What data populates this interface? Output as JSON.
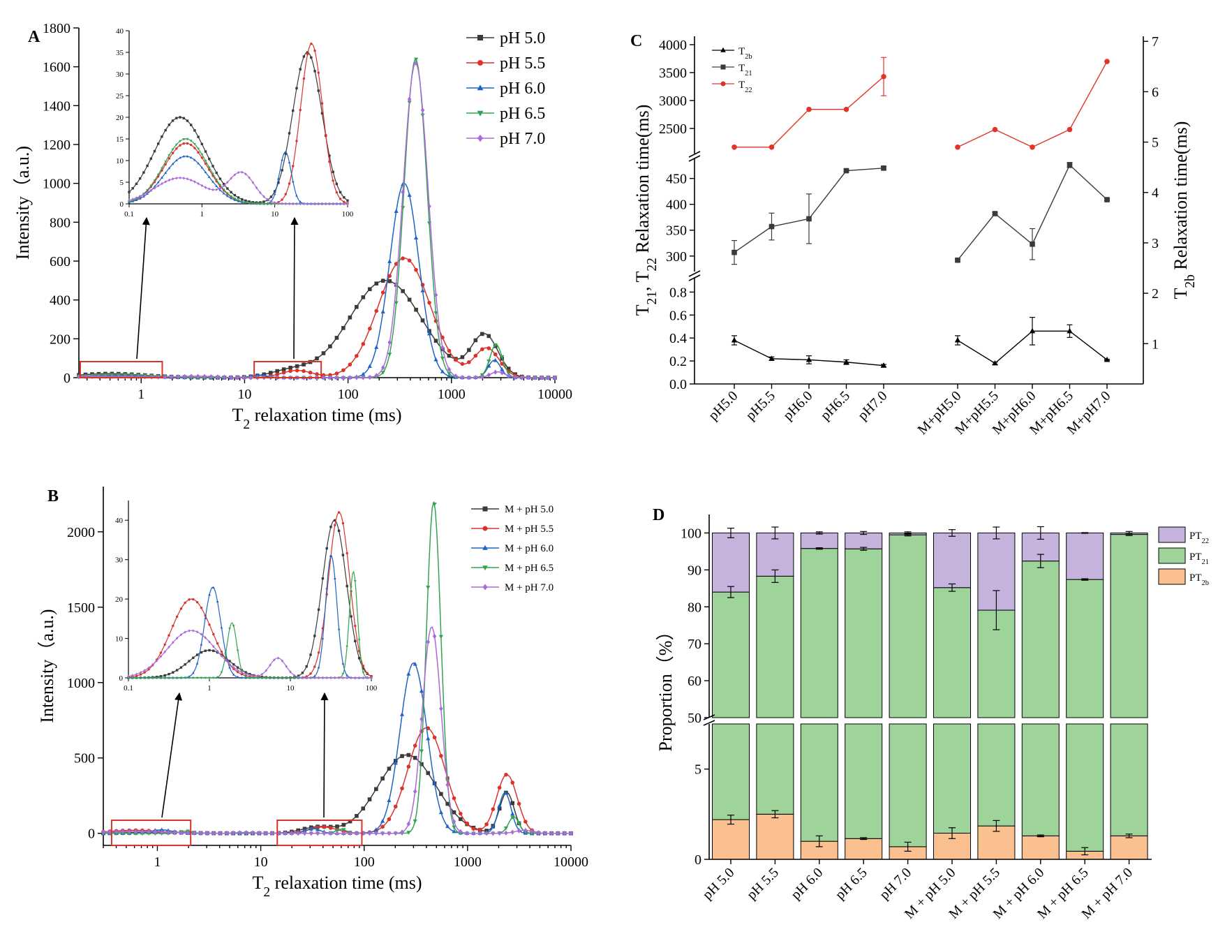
{
  "panels": {
    "A": {
      "letter": "A"
    },
    "B": {
      "letter": "B"
    },
    "C": {
      "letter": "C"
    },
    "D": {
      "letter": "D"
    }
  },
  "colors": {
    "pH 5.0": "#3a3a3a",
    "pH 5.5": "#d9332b",
    "pH 6.0": "#1f63c4",
    "pH 6.5": "#33a351",
    "pH 7.0": "#a86bd9",
    "t2b": "#000000",
    "t21": "#3a3a3a",
    "t22": "#e0342a",
    "pt22": "#c6b3dd",
    "pt21": "#9ed39a",
    "pt2b": "#fbc08f",
    "box": "#d9332b"
  },
  "chart_data": [
    {
      "id": "A",
      "type": "line",
      "title": "",
      "xlabel_main": "T",
      "xlabel_sub": "2",
      "xlabel_rest": " relaxation time (ms)",
      "ylabel": "Intensity（a.u.)",
      "xscale": "log",
      "xlim": [
        0.25,
        10000
      ],
      "ylim": [
        0,
        1800
      ],
      "xticks": [
        "1",
        "10",
        "100",
        "1000",
        "10000"
      ],
      "yticks": [
        "0",
        "200",
        "400",
        "600",
        "800",
        "1000",
        "1200",
        "1400",
        "1600",
        "1800"
      ],
      "legend_position": "top-right",
      "series": [
        {
          "name": "pH 5.0",
          "marker": "square",
          "peaks": [
            [
              0.5,
              20,
              0.35
            ],
            [
              28,
              35,
              0.2
            ],
            [
              230,
              500,
              0.35
            ],
            [
              2100,
              215,
              0.13
            ]
          ]
        },
        {
          "name": "pH 5.5",
          "marker": "circle",
          "peaks": [
            [
              0.6,
              14,
              0.3
            ],
            [
              32,
              37,
              0.15
            ],
            [
              350,
              615,
              0.25
            ],
            [
              2200,
              150,
              0.12
            ]
          ]
        },
        {
          "name": "pH 6.0",
          "marker": "triangle",
          "peaks": [
            [
              0.6,
              11,
              0.3
            ],
            [
              14,
              12,
              0.08
            ],
            [
              350,
              1000,
              0.14
            ],
            [
              2600,
              90,
              0.06
            ]
          ]
        },
        {
          "name": "pH 6.5",
          "marker": "triangle-down",
          "peaks": [
            [
              0.6,
              15,
              0.3
            ],
            [
              450,
              1640,
              0.11
            ],
            [
              2700,
              170,
              0.06
            ]
          ]
        },
        {
          "name": "pH 7.0",
          "marker": "diamond",
          "peaks": [
            [
              0.5,
              6,
              0.35
            ],
            [
              3.5,
              7,
              0.18
            ],
            [
              450,
              1620,
              0.12
            ],
            [
              2800,
              30,
              0.07
            ]
          ]
        }
      ],
      "inset": {
        "xscale": "log",
        "xlim": [
          0.1,
          100
        ],
        "ylim": [
          0,
          40
        ],
        "xticks": [
          "0.1",
          "1",
          "10",
          "100"
        ],
        "yticks": [
          "0",
          "5",
          "10",
          "15",
          "20",
          "25",
          "30",
          "35",
          "40"
        ]
      },
      "zoom_boxes": [
        [
          0.25,
          1.6
        ],
        [
          12,
          55
        ]
      ]
    },
    {
      "id": "B",
      "type": "line",
      "title": "",
      "xlabel_main": "T",
      "xlabel_sub": "2",
      "xlabel_rest": " relaxation time (ms)",
      "ylabel": "Intensity（a.u.)",
      "xscale": "log",
      "xlim": [
        0.3,
        10000
      ],
      "ylim": [
        -80,
        2300
      ],
      "xticks": [
        "1",
        "10",
        "100",
        "1000",
        "10000"
      ],
      "yticks": [
        "0",
        "500",
        "1000",
        "1500",
        "2000"
      ],
      "ytick_values": [
        0,
        500,
        1000,
        1500,
        2000
      ],
      "legend_position": "top-right",
      "series": [
        {
          "name": "M + pH 5.0",
          "marker": "square",
          "peaks": [
            [
              1.0,
              7,
              0.25
            ],
            [
              35,
              40,
              0.15
            ],
            [
              260,
              520,
              0.28
            ],
            [
              2400,
              270,
              0.07
            ]
          ]
        },
        {
          "name": "M + pH 5.5",
          "marker": "circle",
          "peaks": [
            [
              0.6,
              20,
              0.25
            ],
            [
              40,
              42,
              0.13
            ],
            [
              400,
              700,
              0.18
            ],
            [
              2400,
              390,
              0.1
            ]
          ]
        },
        {
          "name": "M + pH 6.0",
          "marker": "triangle",
          "peaks": [
            [
              1.1,
              23,
              0.1
            ],
            [
              32,
              31,
              0.07
            ],
            [
              300,
              1130,
              0.13
            ],
            [
              2300,
              270,
              0.06
            ]
          ]
        },
        {
          "name": "M + pH 6.5",
          "marker": "triangle-down",
          "peaks": [
            [
              1.9,
              14,
              0.06
            ],
            [
              60,
              27,
              0.05
            ],
            [
              470,
              2200,
              0.07
            ],
            [
              2800,
              110,
              0.05
            ]
          ]
        },
        {
          "name": "M + pH 7.0",
          "marker": "diamond",
          "peaks": [
            [
              0.6,
              12,
              0.3
            ],
            [
              7,
              5,
              0.1
            ],
            [
              450,
              1370,
              0.09
            ],
            [
              3500,
              20,
              0.08
            ]
          ]
        }
      ],
      "inset": {
        "xscale": "log",
        "xlim": [
          0.1,
          100
        ],
        "ylim": [
          0,
          45
        ],
        "xticks": [
          "0.1",
          "1",
          "10",
          "100"
        ],
        "yticks": [
          "0",
          "10",
          "20",
          "30",
          "40"
        ]
      },
      "zoom_boxes": [
        [
          0.35,
          2.1
        ],
        [
          14,
          95
        ]
      ]
    },
    {
      "id": "C",
      "type": "line",
      "title": "",
      "ylabel_left": "T21, T22 Relaxation time(ms)",
      "ylabel_right": "T2b Relaxation time(ms)",
      "categories": [
        "pH5.0",
        "pH5.5",
        "pH6.0",
        "pH6.5",
        "pH7.0",
        "M+pH5.0",
        "M+pH5.5",
        "M+pH6.0",
        "M+pH6.5",
        "M+pH7.0"
      ],
      "left_axis_segments": {
        "top": {
          "range": [
            2050,
            4150
          ],
          "ticks": [
            "2500",
            "3000",
            "3500",
            "4000"
          ],
          "tick_values": [
            2500,
            3000,
            3500,
            4000
          ]
        },
        "middle": {
          "range": [
            270,
            490
          ],
          "ticks": [
            "300",
            "350",
            "400",
            "450"
          ],
          "tick_values": [
            300,
            350,
            400,
            450
          ]
        },
        "bottom": {
          "range": [
            0,
            0.93
          ],
          "ticks": [
            "0.0",
            "0.2",
            "0.4",
            "0.6",
            "0.8"
          ],
          "tick_values": [
            0,
            0.2,
            0.4,
            0.6,
            0.8
          ]
        }
      },
      "right_axis": {
        "range": [
          0.2,
          7.1
        ],
        "ticks": [
          "1",
          "2",
          "3",
          "4",
          "5",
          "6",
          "7"
        ],
        "tick_values": [
          1,
          2,
          3,
          4,
          5,
          6,
          7
        ]
      },
      "series": [
        {
          "name": "T2b",
          "legend_main": "T",
          "legend_sub": "2b",
          "marker": "triangle",
          "axis": "left-bottom",
          "values": [
            0.38,
            0.22,
            0.21,
            0.19,
            0.16,
            0.38,
            0.18,
            0.46,
            0.46,
            0.21
          ],
          "errors": [
            0.04,
            0.015,
            0.035,
            0.02,
            0.01,
            0.04,
            0.01,
            0.12,
            0.055,
            0.005
          ]
        },
        {
          "name": "T21",
          "legend_main": "T",
          "legend_sub": "21",
          "marker": "square",
          "axis": "left-middle",
          "values": [
            307,
            357,
            372,
            465,
            470,
            292,
            382,
            323,
            476,
            409
          ],
          "errors": [
            23,
            26,
            48,
            2,
            3,
            2,
            2,
            30,
            5,
            2
          ]
        },
        {
          "name": "T22",
          "legend_main": "T",
          "legend_sub": "22",
          "marker": "circle",
          "axis": "right",
          "values": [
            4.9,
            4.9,
            5.65,
            5.65,
            6.3,
            4.9,
            5.25,
            4.9,
            5.25,
            6.6
          ],
          "errors": [
            0,
            0,
            0,
            0,
            0.38,
            0,
            0,
            0,
            0,
            0
          ]
        }
      ],
      "legend_position": "top-left"
    },
    {
      "id": "D",
      "type": "bar",
      "stacked": true,
      "title": "",
      "ylabel": "Proportion（%）",
      "categories": [
        "pH 5.0",
        "pH 5.5",
        "pH 6.0",
        "pH 6.5",
        "pH 7.0",
        "M + pH 5.0",
        "M + pH 5.5",
        "M + pH 6.0",
        "M + pH 6.5",
        "M + pH 7.0"
      ],
      "axis_segments": {
        "upper": {
          "range": [
            50,
            105
          ],
          "ticks": [
            "50",
            "60",
            "70",
            "80",
            "90",
            "100"
          ],
          "tick_values": [
            50,
            60,
            70,
            80,
            90,
            100
          ]
        },
        "lower": {
          "range": [
            0,
            7.5
          ],
          "ticks": [
            "0",
            "5"
          ],
          "tick_values": [
            0,
            5
          ]
        }
      },
      "series": [
        {
          "name": "PT2b",
          "legend_main": "PT",
          "legend_sub": "2b",
          "values": [
            2.2,
            2.5,
            1.0,
            1.15,
            0.7,
            1.45,
            1.85,
            1.3,
            0.45,
            1.3
          ],
          "errors": [
            0.25,
            0.2,
            0.3,
            0.05,
            0.25,
            0.3,
            0.3,
            0.05,
            0.2,
            0.1
          ]
        },
        {
          "name": "PT21",
          "legend_main": "PT",
          "legend_sub": "21",
          "cumulative": [
            84,
            88.3,
            95.8,
            95.7,
            99.5,
            85.2,
            79.1,
            92.4,
            87.4,
            99.6
          ],
          "errors": [
            1.5,
            1.7,
            0.2,
            0.4,
            0.3,
            1.0,
            5.3,
            1.8,
            0.2,
            0.3
          ]
        },
        {
          "name": "PT22",
          "legend_main": "PT",
          "legend_sub": "22",
          "cumulative": [
            100,
            100,
            100,
            100,
            100,
            100,
            100,
            100,
            100,
            100
          ],
          "errors": [
            1.3,
            1.6,
            0.3,
            0.4,
            0.3,
            0.9,
            1.6,
            1.7,
            0.1,
            0.4
          ]
        }
      ],
      "legend_position": "top-right"
    }
  ]
}
